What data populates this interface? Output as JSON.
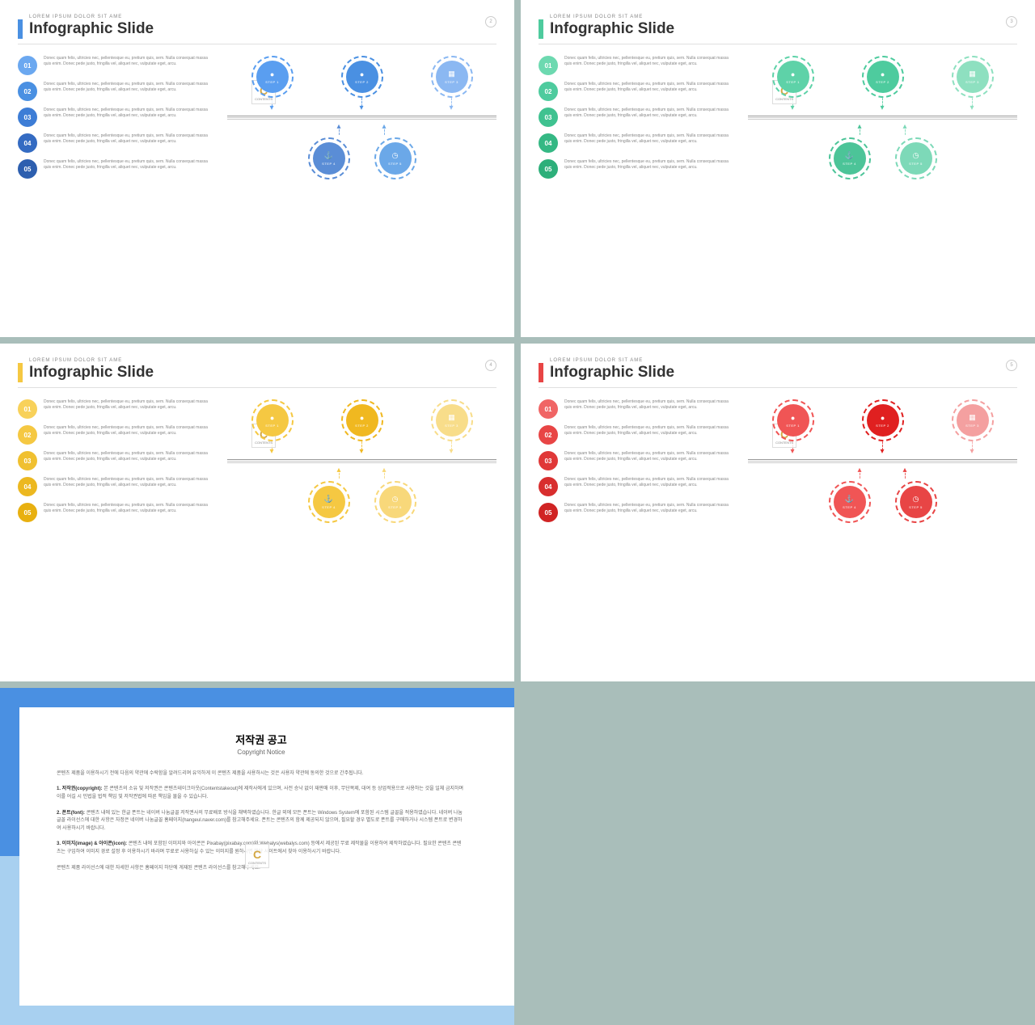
{
  "kicker": "LOREM IPSUM DOLOR SIT AME",
  "title": "Infographic Slide",
  "item_text": "Donec quam felis, ultricies nec, pellentesque eu, pretium quis, sem. Nulla consequat massa quis enim. Donec pede justo, fringilla vel, aliquet nec, vulputate eget, arcu.",
  "steps": [
    "STEP 1",
    "STEP 2",
    "STEP 3",
    "STEP 4",
    "STEP 5"
  ],
  "step_icons": [
    "●",
    "●",
    "▦",
    "⚓",
    "◷"
  ],
  "slides": [
    {
      "num": "2",
      "accent": "#4a90e2",
      "shades": [
        "#6ba8f0",
        "#4a90e2",
        "#3d7dd6",
        "#346bc2",
        "#2d5faf"
      ],
      "circle_shades": [
        "#5a9ef0",
        "#4a90e2",
        "#8bb8f2",
        "#5a8dd6",
        "#6ba8e8"
      ]
    },
    {
      "num": "3",
      "accent": "#4ecb9e",
      "shades": [
        "#6dd9b0",
        "#4ecb9e",
        "#3fc290",
        "#35b884",
        "#2daf7a"
      ],
      "circle_shades": [
        "#5ed2a8",
        "#4ecb9e",
        "#8ee0c0",
        "#4cc498",
        "#7dd9b8"
      ]
    },
    {
      "num": "4",
      "accent": "#f5c842",
      "shades": [
        "#f8d15a",
        "#f5c842",
        "#f0c030",
        "#ecb820",
        "#e8b010"
      ],
      "circle_shades": [
        "#f5c842",
        "#f0b820",
        "#f8dd8a",
        "#f5c842",
        "#f8d87a"
      ]
    },
    {
      "num": "5",
      "accent": "#e84545",
      "shades": [
        "#f06565",
        "#e84545",
        "#e03838",
        "#d82e2e",
        "#d02424"
      ],
      "circle_shades": [
        "#f05555",
        "#e02020",
        "#f4a0a0",
        "#f05555",
        "#e84545"
      ]
    }
  ],
  "copyright": {
    "title": "저작권 공고",
    "sub": "Copyright Notice",
    "border_top": "#4a90e2",
    "border_bot": "#a8d0f0",
    "paras": [
      "콘텐츠 제품을 이용하시기 전에 다음의 약관에 수락함을 알려드리며 유익하게 이 콘텐츠 제품을 사용하시는 것은 사용자 약관에 동의한 것으로 간주됩니다.",
      "<b>1. 저작권(copyright):</b> 본 콘텐츠의 소유 및 저작권은 콘텐츠테이크아웃(Contentstakeout)에 제작사에게 있으며, 사전 승낙 없이 재판매 이후, 무단복제, 대여 등 상업적용으로 사용하는 것을 일체 금지하며 이를 어길 시 민법을 법적 책임 및 저작권법에 따른 책임을 물을 수 있습니다.",
      "<b>2. 폰트(font):</b> 콘텐츠 내에 있는 한글 폰트는 네이버 나눔글꼴 저작권사의 무료배포 방식을 채택하였습니다. 한글 외에 모든 폰트는 Windows System에 포함된 시스템 글꼴을 적용하였습니다. 네이버 나눔글꼴 라이선스에 대한 사항은 자정은 네이버 나눔글꼴 홈페이지(hangeul.naver.com)를 참고해주세요. 폰트는 콘텐츠의 함께 제공되지 않으며, 필요할 경우 별도로 폰트를 구매하거나 시스템 폰트로 변경하여 사용하시기 바랍니다.",
      "<b>3. 이미지(image) & 아이콘(icon):</b> 콘텐츠 내에 포함된 이미지와 아이콘은 Pixabay(pixabay.com)와 Webalys(webalys.com) 등에서 제공된 무료 제작물을 이용하여 제작하였습니다. 필요한 콘텐츠 콘텐츠는 구입하여 이미지 경로 설정 후 이용하시기 바라며 무료로 사용하실 수 있는 이미지를 원하시면 해당 사이트에서 찾아 이용하시기 바랍니다.",
      "콘텐츠 제품 라이선스에 대한 자세한 사항은 홈페이지 하단에 게재된 콘텐츠 라이선스를 참고해주세요."
    ]
  }
}
